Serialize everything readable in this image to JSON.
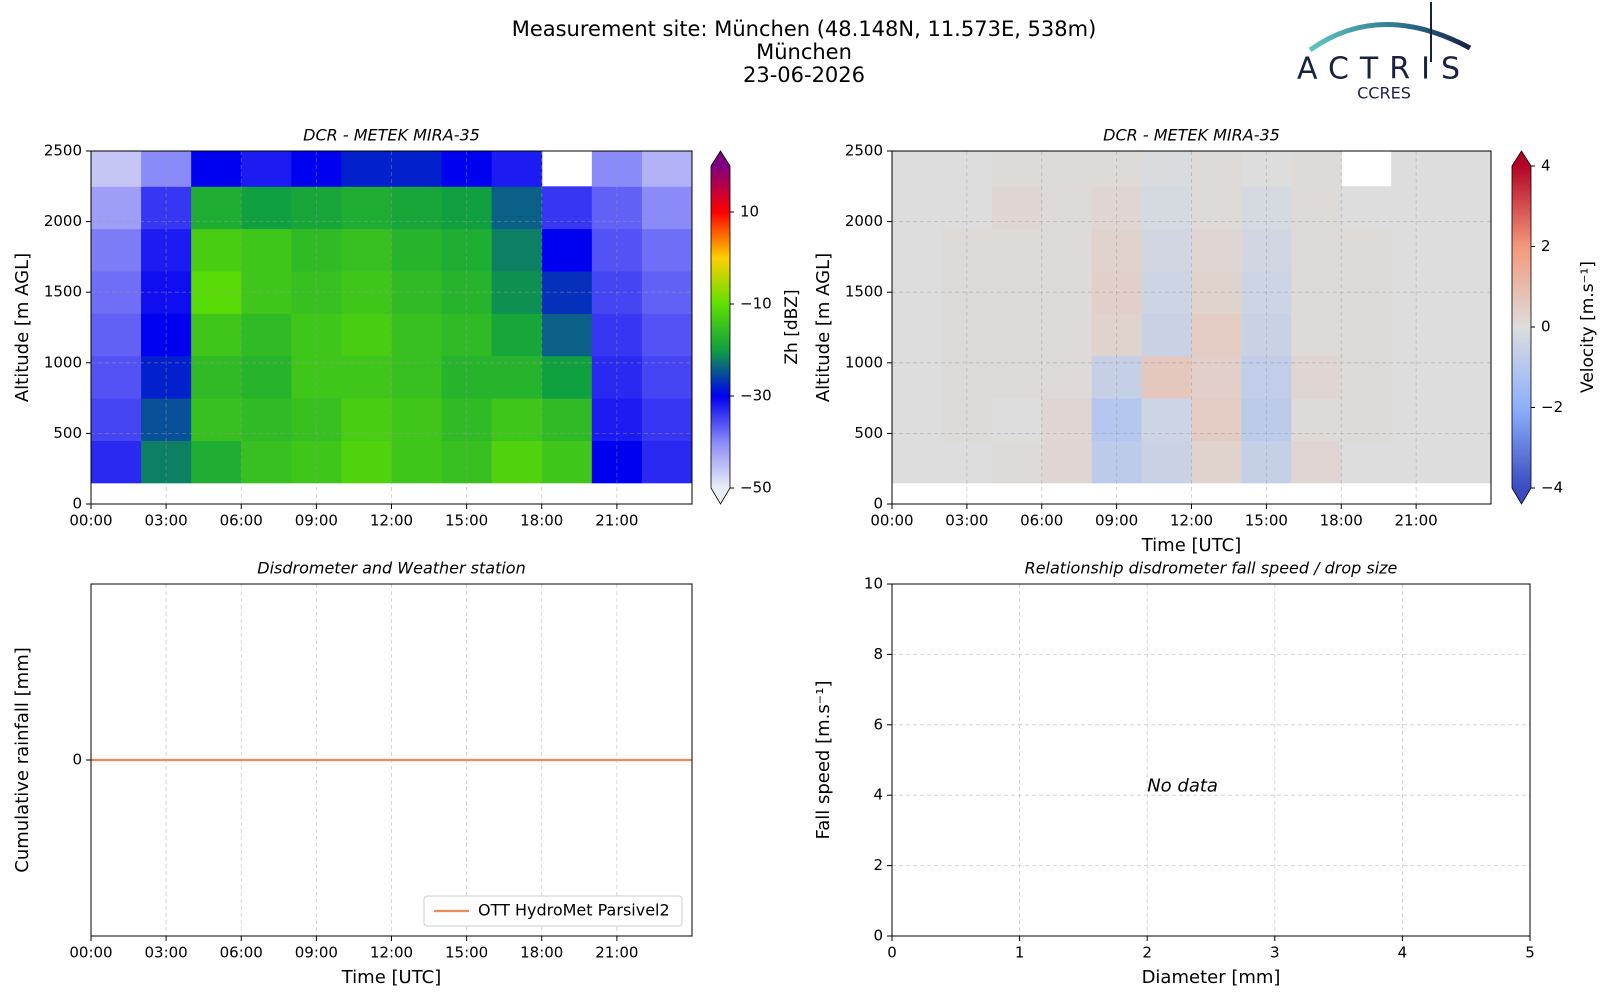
{
  "header": {
    "title": "Measurement site: München (48.148N, 11.573E, 538m)",
    "subtitle": "München",
    "date": "23-06-2026"
  },
  "logo": {
    "name": "ACTRIS",
    "subtitle": "CCRES"
  },
  "chart_data": [
    {
      "type": "heatmap",
      "title": "DCR - METEK MIRA-35",
      "ylabel": "Altitude [m AGL]",
      "xlim": [
        0,
        24
      ],
      "xticks": [
        {
          "value": 0,
          "label": "00:00"
        },
        {
          "value": 3,
          "label": "03:00"
        },
        {
          "value": 6,
          "label": "06:00"
        },
        {
          "value": 9,
          "label": "09:00"
        },
        {
          "value": 12,
          "label": "12:00"
        },
        {
          "value": 15,
          "label": "15:00"
        },
        {
          "value": 18,
          "label": "18:00"
        },
        {
          "value": 21,
          "label": "21:00"
        }
      ],
      "ylim": [
        0,
        2500
      ],
      "yticks": [
        0,
        500,
        1000,
        1500,
        2000,
        2500
      ],
      "x_bins": [
        0,
        2,
        4,
        6,
        8,
        10,
        12,
        14,
        16,
        18,
        20,
        22,
        24
      ],
      "y_bins": [
        150,
        450,
        750,
        1050,
        1350,
        1650,
        1950,
        2250,
        2500
      ],
      "z": [
        [
          -33,
          -22,
          -18,
          -15,
          -14,
          -12,
          -14,
          -15,
          -12,
          -14,
          -30,
          -33
        ],
        [
          -35,
          -25,
          -15,
          -16,
          -15,
          -13,
          -14,
          -16,
          -14,
          -16,
          -32,
          -34
        ],
        [
          -36,
          -28,
          -16,
          -17,
          -14,
          -14,
          -15,
          -17,
          -17,
          -20,
          -33,
          -35
        ],
        [
          -37,
          -30,
          -14,
          -16,
          -14,
          -13,
          -15,
          -16,
          -19,
          -24,
          -34,
          -36
        ],
        [
          -38,
          -31,
          -11,
          -14,
          -15,
          -14,
          -16,
          -17,
          -21,
          -27,
          -35,
          -37
        ],
        [
          -39,
          -32,
          -13,
          -14,
          -16,
          -15,
          -17,
          -18,
          -22,
          -30,
          -36,
          -38
        ],
        [
          -42,
          -34,
          -18,
          -20,
          -19,
          -18,
          -19,
          -20,
          -24,
          -34,
          -37,
          -40
        ],
        [
          -46,
          -40,
          -30,
          -32,
          -30,
          -28,
          -28,
          -30,
          -32,
          null,
          -40,
          -44
        ]
      ],
      "zlim": [
        -50,
        20
      ],
      "zticks": [
        {
          "value": -50,
          "label": "−50"
        },
        {
          "value": -30,
          "label": "−30"
        },
        {
          "value": -10,
          "label": "−10"
        },
        10
      ],
      "colorbar_label": "Zh [dBZ]",
      "colormap": [
        "#ececf4",
        "#8a8af8",
        "#0000f0",
        "#10a040",
        "#60e000",
        "#ffd000",
        "#ff0000",
        "#800080"
      ],
      "grid": true
    },
    {
      "type": "heatmap",
      "title": "DCR - METEK MIRA-35",
      "ylabel": "Altitude [m AGL]",
      "xlabel": "Time [UTC]",
      "xlim": [
        0,
        24
      ],
      "xticks": [
        {
          "value": 0,
          "label": "00:00"
        },
        {
          "value": 3,
          "label": "03:00"
        },
        {
          "value": 6,
          "label": "06:00"
        },
        {
          "value": 9,
          "label": "09:00"
        },
        {
          "value": 12,
          "label": "12:00"
        },
        {
          "value": 15,
          "label": "15:00"
        },
        {
          "value": 18,
          "label": "18:00"
        },
        {
          "value": 21,
          "label": "21:00"
        }
      ],
      "ylim": [
        0,
        2500
      ],
      "yticks": [
        0,
        500,
        1000,
        1500,
        2000,
        2500
      ],
      "x_bins": [
        0,
        2,
        4,
        6,
        8,
        10,
        12,
        14,
        16,
        18,
        20,
        22,
        24
      ],
      "y_bins": [
        150,
        450,
        750,
        1050,
        1350,
        1650,
        1950,
        2250,
        2500
      ],
      "z": [
        [
          0,
          0,
          0.1,
          0.2,
          -0.8,
          -0.5,
          0.3,
          -0.6,
          0.2,
          0,
          0,
          0
        ],
        [
          0,
          0.1,
          0,
          0.2,
          -1,
          -0.4,
          0.5,
          -0.8,
          0.1,
          0.1,
          0,
          0
        ],
        [
          0,
          0.1,
          0.1,
          0.1,
          -0.6,
          0.6,
          0.4,
          -0.7,
          0.2,
          0.1,
          0,
          0
        ],
        [
          0,
          0.1,
          0.1,
          0.1,
          0.3,
          -0.5,
          0.5,
          -0.5,
          0.1,
          0.1,
          0,
          0
        ],
        [
          0,
          0.1,
          0.1,
          0.1,
          0.4,
          -0.4,
          0.3,
          -0.4,
          0.1,
          0.1,
          0,
          0
        ],
        [
          0,
          0.1,
          0.1,
          0.1,
          0.3,
          -0.3,
          0.2,
          -0.3,
          0.1,
          0.1,
          0,
          0
        ],
        [
          0,
          0,
          0.2,
          0.1,
          0.2,
          -0.2,
          0.1,
          -0.2,
          0.1,
          0,
          0,
          0
        ],
        [
          0,
          0,
          0.1,
          0.1,
          0.1,
          -0.1,
          0.1,
          0,
          0.1,
          null,
          0,
          0
        ]
      ],
      "zlim": [
        -4,
        4
      ],
      "zticks": [
        {
          "value": -4,
          "label": "−4"
        },
        {
          "value": -2,
          "label": "−2"
        },
        0,
        2,
        4
      ],
      "colorbar_label": "Velocity [m.s⁻¹]",
      "colormap": [
        "#3b4cc0",
        "#8db0fe",
        "#dddddd",
        "#f4987a",
        "#b40426"
      ],
      "grid": true
    },
    {
      "type": "line",
      "title": "Disdrometer and Weather station",
      "ylabel": "Cumulative rainfall [mm]",
      "xlabel": "Time [UTC]",
      "xlim": [
        0,
        24
      ],
      "xticks": [
        {
          "value": 0,
          "label": "00:00"
        },
        {
          "value": 3,
          "label": "03:00"
        },
        {
          "value": 6,
          "label": "06:00"
        },
        {
          "value": 9,
          "label": "09:00"
        },
        {
          "value": 12,
          "label": "12:00"
        },
        {
          "value": 15,
          "label": "15:00"
        },
        {
          "value": 18,
          "label": "18:00"
        },
        {
          "value": 21,
          "label": "21:00"
        }
      ],
      "ylim": [
        -0.05,
        0.05
      ],
      "yticks": [
        0
      ],
      "x": [
        0,
        24
      ],
      "series": [
        {
          "name": "OTT HydroMet Parsivel2",
          "color": "#f08a5d",
          "values": [
            0,
            0
          ]
        }
      ],
      "legend": "lower right",
      "grid": true
    },
    {
      "type": "scatter",
      "title": "Relationship disdrometer fall speed / drop size",
      "ylabel": "Fall speed [m.s⁻¹]",
      "xlabel": "Diameter [mm]",
      "xlim": [
        0,
        5
      ],
      "xticks": [
        0,
        1,
        2,
        3,
        4,
        5
      ],
      "ylim": [
        0,
        10
      ],
      "yticks": [
        0,
        2,
        4,
        6,
        8,
        10
      ],
      "x": [],
      "values": [],
      "annotation": "No data",
      "grid": true
    }
  ]
}
